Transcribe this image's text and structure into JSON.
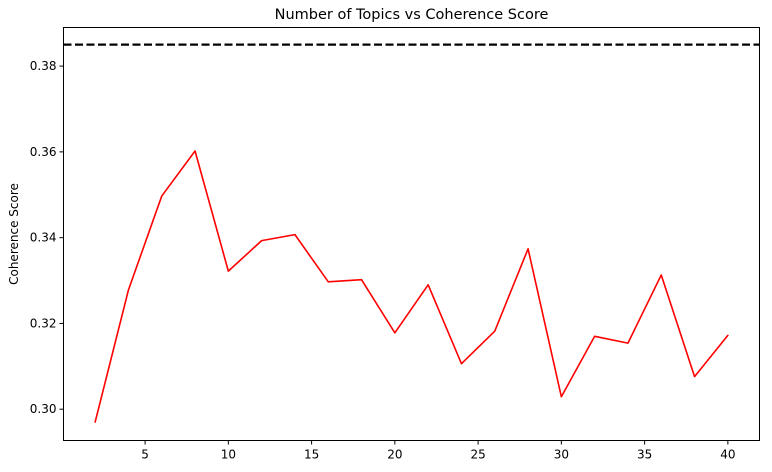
{
  "chart_data": {
    "type": "line",
    "title": "Number of Topics vs Coherence Score",
    "xlabel": "",
    "ylabel": "Coherence Score",
    "xlim": [
      0.1,
      41.9
    ],
    "ylim": [
      0.2927,
      0.389
    ],
    "xticks": [
      5,
      10,
      15,
      20,
      25,
      30,
      35,
      40
    ],
    "yticks": [
      0.3,
      0.32,
      0.34,
      0.36,
      0.38
    ],
    "xtick_labels": [
      "5",
      "10",
      "15",
      "20",
      "25",
      "30",
      "35",
      "40"
    ],
    "ytick_labels": [
      "0.30",
      "0.32",
      "0.34",
      "0.36",
      "0.38"
    ],
    "grid": false,
    "series": [
      {
        "color": "#ff0000",
        "style": "solid",
        "x": [
          2,
          4,
          6,
          8,
          10,
          12,
          14,
          16,
          18,
          20,
          22,
          24,
          26,
          28,
          30,
          32,
          34,
          36,
          38,
          40
        ],
        "y": [
          0.297,
          0.3278,
          0.3497,
          0.3602,
          0.3322,
          0.3393,
          0.3407,
          0.3297,
          0.3302,
          0.3178,
          0.329,
          0.3106,
          0.3182,
          0.3374,
          0.3029,
          0.317,
          0.3154,
          0.3313,
          0.3076,
          0.3172
        ]
      }
    ],
    "reference_lines": [
      {
        "orientation": "horizontal",
        "y": 0.385,
        "color": "#000000",
        "style": "dashed"
      }
    ]
  }
}
